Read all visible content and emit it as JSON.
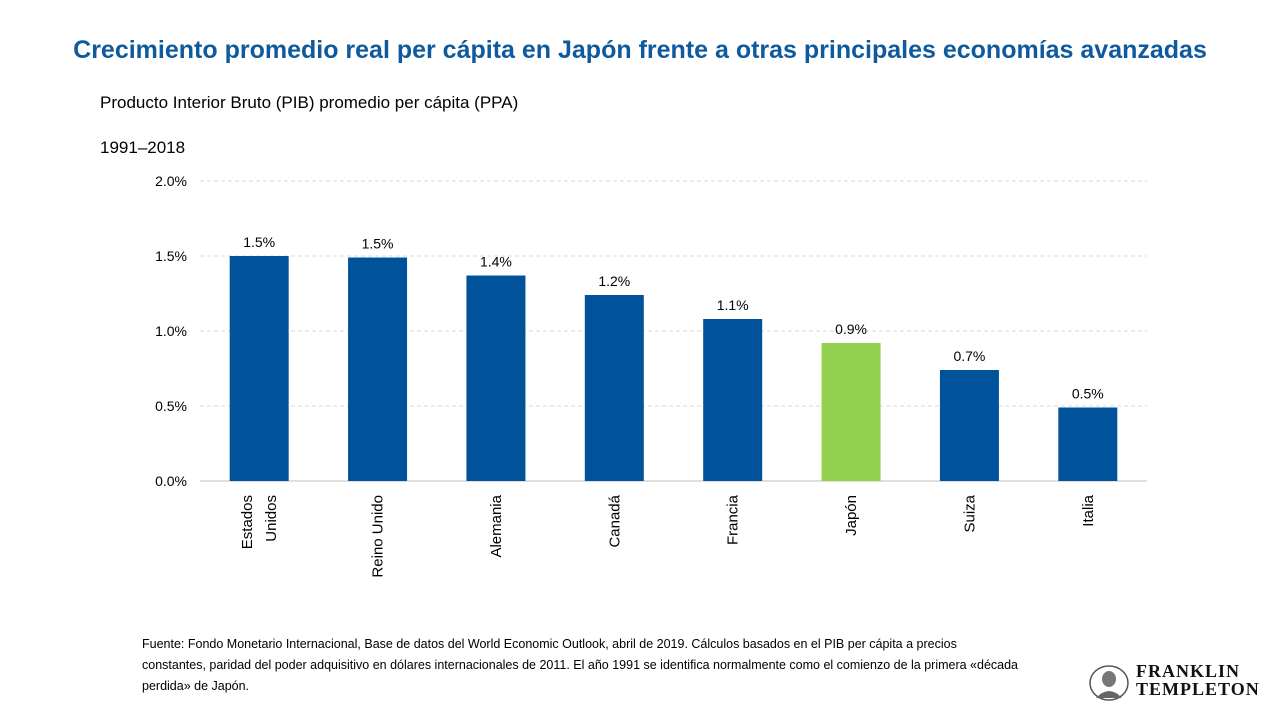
{
  "header": {
    "title": "Crecimiento promedio real per cápita en Japón frente a otras principales economías avanzadas",
    "subtitle": "Producto Interior Bruto (PIB) promedio per cápita (PPA)",
    "period": "1991–2018"
  },
  "chart_data": {
    "type": "bar",
    "categories": [
      [
        "Estados",
        "Unidos"
      ],
      [
        "Reino Unido"
      ],
      [
        "Alemania"
      ],
      [
        "Canadá"
      ],
      [
        "Francia"
      ],
      [
        "Japón"
      ],
      [
        "Suiza"
      ],
      [
        "Italia"
      ]
    ],
    "values": [
      1.5,
      1.49,
      1.37,
      1.24,
      1.08,
      0.92,
      0.74,
      0.49
    ],
    "data_labels": [
      "1.5%",
      "1.5%",
      "1.4%",
      "1.2%",
      "1.1%",
      "0.9%",
      "0.7%",
      "0.5%"
    ],
    "highlight_index": 5,
    "yticks": [
      "0.0%",
      "0.5%",
      "1.0%",
      "1.5%",
      "2.0%"
    ],
    "ylim": [
      0,
      2.0
    ],
    "grid": true,
    "colors": {
      "bar": "#00539b",
      "highlight": "#92d050",
      "grid": "#d9d9d9"
    }
  },
  "footer": {
    "source": "Fuente: Fondo Monetario Internacional, Base de datos del World Economic Outlook, abril de 2019. Cálculos basados en el PIB per cápita a precios constantes, paridad del poder adquisitivo en dólares internacionales de 2011. El año 1991 se identifica normalmente como el comienzo de la primera «década perdida» de Japón."
  },
  "logo": {
    "line1": "FRANKLIN",
    "line2": "TEMPLETON"
  }
}
